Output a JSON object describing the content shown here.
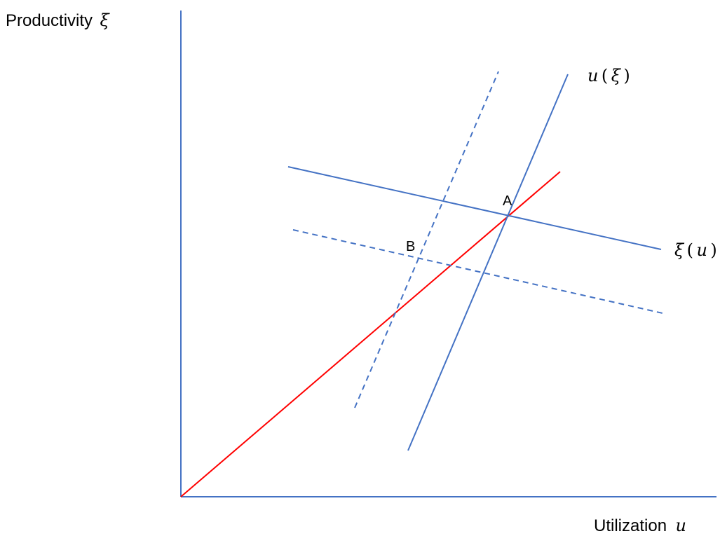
{
  "axes": {
    "y_label": "Productivity",
    "y_symbol": "ξ",
    "x_label": "Utilization",
    "x_symbol": "u"
  },
  "curves": {
    "u_of_xi": {
      "fn": "u",
      "arg": "ξ"
    },
    "xi_of_u": {
      "fn": "ξ",
      "arg": "u"
    }
  },
  "points": {
    "a": "A",
    "b": "B"
  },
  "colors": {
    "axis": "#4472C4",
    "curve": "#4472C4",
    "ray": "#FF0000"
  }
}
